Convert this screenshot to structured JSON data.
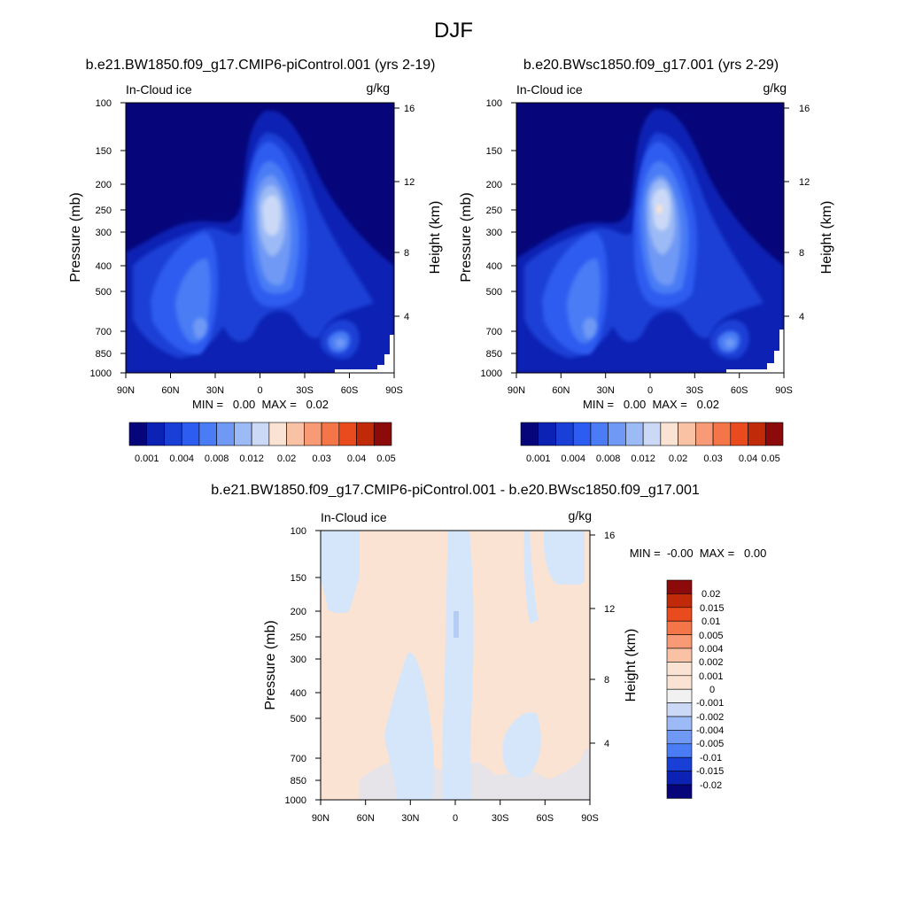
{
  "main_title": "DJF",
  "chart_data": [
    {
      "type": "heatmap",
      "title": "b.e21.BW1850.f09_g17.CMIP6-piControl.001 (yrs 2-19)",
      "left_label": "In-Cloud ice",
      "units": "g/kg",
      "ylabel": "Pressure (mb)",
      "ylabel_right": "Height (km)",
      "x_ticks": [
        "90N",
        "60N",
        "30N",
        "0",
        "30S",
        "60S",
        "90S"
      ],
      "y_ticks": [
        "100",
        "150",
        "200",
        "250",
        "300",
        "400",
        "500",
        "700",
        "850",
        "1000"
      ],
      "y_ticks_right": [
        "16",
        "12",
        "8",
        "4"
      ],
      "stats": "MIN =   0.00  MAX =   0.02",
      "colorbar_levels": [
        "0.001",
        "0.004",
        "0.008",
        "0.012",
        "0.02",
        "0.03",
        "0.04",
        "0.05"
      ],
      "colorbar_colors": [
        "#06067a",
        "#0c22b4",
        "#1a3fd6",
        "#2d5cf0",
        "#4a7cf5",
        "#7099f5",
        "#9cbaf5",
        "#cbd9f7",
        "#fbe3d3",
        "#f9c2a4",
        "#f79a75",
        "#f37548",
        "#e94a1e",
        "#c02a09",
        "#8c0a0a"
      ]
    },
    {
      "type": "heatmap",
      "title": "b.e20.BWsc1850.f09_g17.001 (yrs 2-29)",
      "left_label": "In-Cloud ice",
      "units": "g/kg",
      "ylabel": "Pressure (mb)",
      "ylabel_right": "Height (km)",
      "x_ticks": [
        "90N",
        "60N",
        "30N",
        "0",
        "30S",
        "60S",
        "90S"
      ],
      "y_ticks": [
        "100",
        "150",
        "200",
        "250",
        "300",
        "400",
        "500",
        "700",
        "850",
        "1000"
      ],
      "y_ticks_right": [
        "16",
        "12",
        "8",
        "4"
      ],
      "stats": "MIN =   0.00  MAX =   0.02",
      "colorbar_levels": [
        "0.001",
        "0.004",
        "0.008",
        "0.012",
        "0.02",
        "0.03",
        "0.04",
        "0.05"
      ],
      "colorbar_colors": [
        "#06067a",
        "#0c22b4",
        "#1a3fd6",
        "#2d5cf0",
        "#4a7cf5",
        "#7099f5",
        "#9cbaf5",
        "#cbd9f7",
        "#fbe3d3",
        "#f9c2a4",
        "#f79a75",
        "#f37548",
        "#e94a1e",
        "#c02a09",
        "#8c0a0a"
      ]
    },
    {
      "type": "heatmap",
      "title": "b.e21.BW1850.f09_g17.CMIP6-piControl.001 - b.e20.BWsc1850.f09_g17.001",
      "left_label": "In-Cloud ice",
      "units": "g/kg",
      "ylabel": "Pressure (mb)",
      "ylabel_right": "Height (km)",
      "x_ticks": [
        "90N",
        "60N",
        "30N",
        "0",
        "30S",
        "60S",
        "90S"
      ],
      "y_ticks": [
        "100",
        "150",
        "200",
        "250",
        "300",
        "400",
        "500",
        "700",
        "850",
        "1000"
      ],
      "y_ticks_right": [
        "16",
        "12",
        "8",
        "4"
      ],
      "stats": "MIN =  -0.00  MAX =   0.00",
      "colorbar_levels": [
        "0.02",
        "0.015",
        "0.01",
        "0.005",
        "0.004",
        "0.002",
        "0.001",
        "0",
        "-0.001",
        "-0.002",
        "-0.004",
        "-0.005",
        "-0.01",
        "-0.015",
        "-0.02"
      ],
      "colorbar_colors": [
        "#8c0a0a",
        "#c02a09",
        "#e94a1e",
        "#f37548",
        "#f79a75",
        "#f9c2a4",
        "#fbe3d3",
        "#f1f1f1",
        "#cbd9f7",
        "#9cbaf5",
        "#7099f5",
        "#4a7cf5",
        "#1a3fd6",
        "#0c22b4",
        "#06067a"
      ]
    }
  ]
}
